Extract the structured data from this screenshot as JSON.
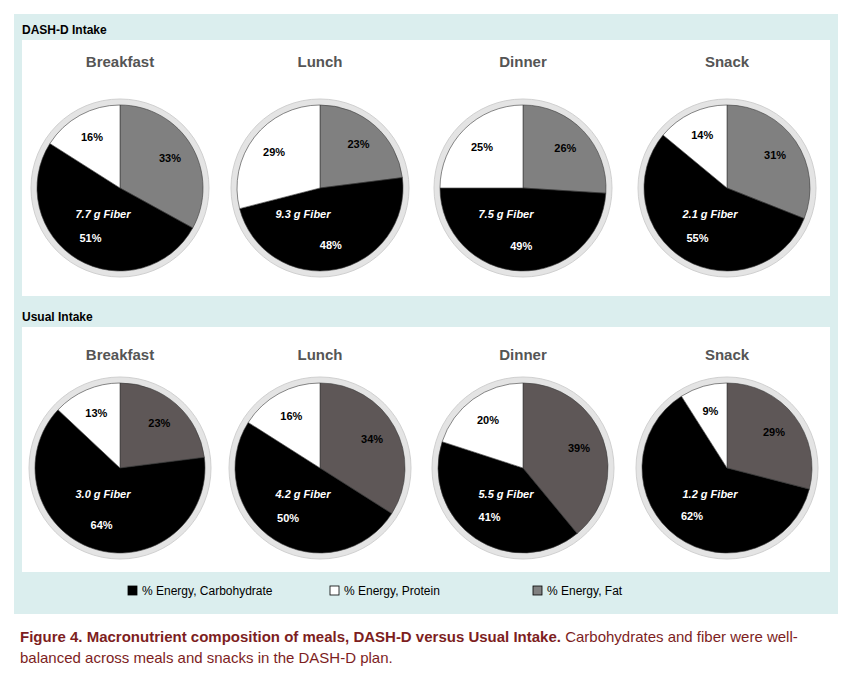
{
  "panels": [
    "DASH-D Intake",
    "Usual Intake"
  ],
  "chart_data": [
    {
      "type": "pie",
      "title": "Breakfast",
      "categories": [
        "% Energy, Carbohydrate",
        "% Energy, Protein",
        "% Energy, Fat"
      ],
      "values": [
        51,
        16,
        33
      ],
      "value_labels": [
        "51%",
        "16%",
        "33%"
      ],
      "colors": [
        "#000000",
        "#ffffff",
        "#808080"
      ],
      "data_labels": true,
      "annotation": "7.7 g Fiber"
    },
    {
      "type": "pie",
      "title": "Lunch",
      "categories": [
        "% Energy, Carbohydrate",
        "% Energy, Protein",
        "% Energy, Fat"
      ],
      "values": [
        48,
        29,
        23
      ],
      "value_labels": [
        "48%",
        "29%",
        "23%"
      ],
      "colors": [
        "#000000",
        "#ffffff",
        "#808080"
      ],
      "data_labels": true,
      "annotation": "9.3 g Fiber"
    },
    {
      "type": "pie",
      "title": "Dinner",
      "categories": [
        "% Energy, Carbohydrate",
        "% Energy, Protein",
        "% Energy, Fat"
      ],
      "values": [
        49,
        25,
        26
      ],
      "value_labels": [
        "49%",
        "25%",
        "26%"
      ],
      "colors": [
        "#000000",
        "#ffffff",
        "#808080"
      ],
      "data_labels": true,
      "annotation": "7.5 g Fiber"
    },
    {
      "type": "pie",
      "title": "Snack",
      "categories": [
        "% Energy, Carbohydrate",
        "% Energy, Protein",
        "% Energy, Fat"
      ],
      "values": [
        55,
        14,
        31
      ],
      "value_labels": [
        "55%",
        "14%",
        "31%"
      ],
      "colors": [
        "#000000",
        "#ffffff",
        "#808080"
      ],
      "data_labels": true,
      "annotation": "2.1 g Fiber"
    },
    {
      "type": "pie",
      "title": "Breakfast",
      "categories": [
        "% Energy, Carbohydrate",
        "% Energy, Protein",
        "% Energy, Fat"
      ],
      "values": [
        64,
        13,
        23
      ],
      "value_labels": [
        "64%",
        "13%",
        "23%"
      ],
      "colors": [
        "#000000",
        "#ffffff",
        "#5e5757"
      ],
      "data_labels": true,
      "annotation": "3.0 g Fiber"
    },
    {
      "type": "pie",
      "title": "Lunch",
      "categories": [
        "% Energy, Carbohydrate",
        "% Energy, Protein",
        "% Energy, Fat"
      ],
      "values": [
        50,
        16,
        34
      ],
      "value_labels": [
        "50%",
        "16%",
        "34%"
      ],
      "colors": [
        "#000000",
        "#ffffff",
        "#5e5757"
      ],
      "data_labels": true,
      "annotation": "4.2 g Fiber"
    },
    {
      "type": "pie",
      "title": "Dinner",
      "categories": [
        "% Energy, Carbohydrate",
        "% Energy, Protein",
        "% Energy, Fat"
      ],
      "values": [
        41,
        20,
        39
      ],
      "value_labels": [
        "41%",
        "20%",
        "39%"
      ],
      "colors": [
        "#000000",
        "#ffffff",
        "#5e5757"
      ],
      "data_labels": true,
      "annotation": "5.5 g Fiber"
    },
    {
      "type": "pie",
      "title": "Snack",
      "categories": [
        "% Energy, Carbohydrate",
        "% Energy, Protein",
        "% Energy, Fat"
      ],
      "values": [
        62,
        9,
        29
      ],
      "value_labels": [
        "62%",
        "9%",
        "29%"
      ],
      "colors": [
        "#000000",
        "#ffffff",
        "#5e5757"
      ],
      "data_labels": true,
      "annotation": "1.2 g Fiber"
    }
  ],
  "caption": {
    "title": "Figure 4. Macronutrient composition of meals, DASH-D versus Usual Intake.",
    "text": "Carbohydrates and fiber were well-balanced across meals and snacks in the DASH-D plan."
  }
}
